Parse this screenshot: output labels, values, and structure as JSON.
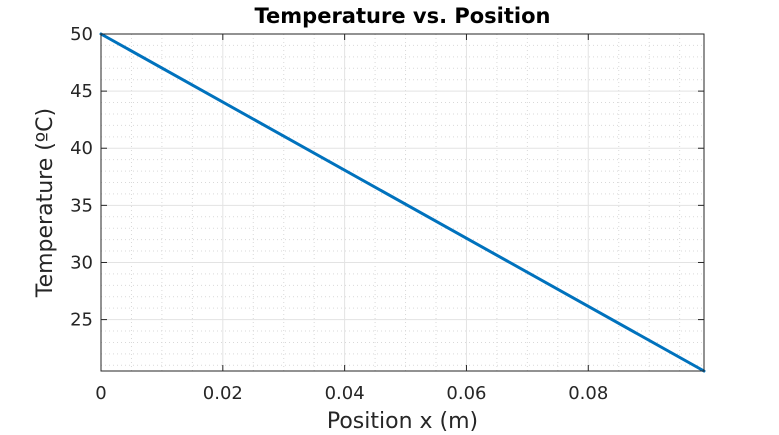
{
  "chart_data": {
    "type": "line",
    "title": "Temperature vs. Position",
    "xlabel": "Position x (m)",
    "ylabel": "Temperature (ºC)",
    "xlim": [
      0,
      0.099
    ],
    "ylim": [
      20.5,
      50
    ],
    "x_ticks": [
      0,
      0.02,
      0.04,
      0.06,
      0.08
    ],
    "x_tick_labels": [
      "0",
      "0.02",
      "0.04",
      "0.06",
      "0.08"
    ],
    "x_minor_step": 0.005,
    "y_ticks": [
      25,
      30,
      35,
      40,
      45,
      50
    ],
    "y_tick_labels": [
      "25",
      "30",
      "35",
      "40",
      "45",
      "50"
    ],
    "y_minor_step": 1,
    "grid": true,
    "minor_grid": true,
    "box": true,
    "series": [
      {
        "color": "#0072BD",
        "x": [
          0,
          0.099
        ],
        "y": [
          50,
          20.5
        ]
      }
    ]
  }
}
